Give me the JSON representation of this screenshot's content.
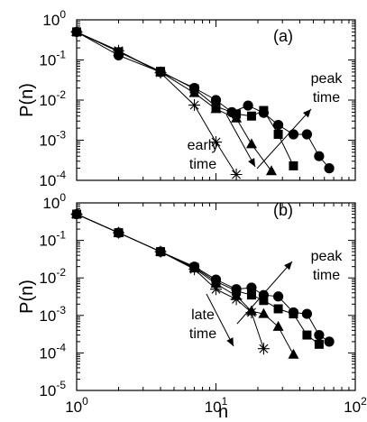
{
  "chart_data": [
    {
      "panel": "(a)",
      "type": "line",
      "xscale": "log",
      "yscale": "log",
      "xlim": [
        1,
        100
      ],
      "ylim": [
        0.0001,
        1
      ],
      "ylabel": "P(n)",
      "xlabel": "",
      "yticks": [
        {
          "value": 1,
          "mantissa": "10",
          "exp": "0"
        },
        {
          "value": 0.1,
          "mantissa": "10",
          "exp": "-1"
        },
        {
          "value": 0.01,
          "mantissa": "10",
          "exp": "-2"
        },
        {
          "value": 0.001,
          "mantissa": "10",
          "exp": "-3"
        },
        {
          "value": 0.0001,
          "mantissa": "10",
          "exp": "-4"
        }
      ],
      "series": [
        {
          "marker": "star",
          "x": [
            1,
            2,
            4,
            7,
            10,
            14
          ],
          "y": [
            0.5,
            0.17,
            0.048,
            0.0075,
            0.0009,
            0.00014
          ]
        },
        {
          "marker": "triangle",
          "x": [
            1,
            2,
            4,
            7,
            10,
            14,
            18,
            25
          ],
          "y": [
            0.5,
            0.16,
            0.05,
            0.015,
            0.006,
            0.0035,
            0.0008,
            0.00017
          ]
        },
        {
          "marker": "square",
          "x": [
            1,
            2,
            4,
            7,
            10,
            14,
            18,
            22,
            28,
            36
          ],
          "y": [
            0.5,
            0.16,
            0.052,
            0.019,
            0.007,
            0.0045,
            0.004,
            0.0055,
            0.0014,
            0.00023
          ]
        },
        {
          "marker": "circle",
          "x": [
            1,
            2,
            4,
            7,
            10,
            13,
            17,
            22,
            28,
            36,
            45,
            55,
            65
          ],
          "y": [
            0.5,
            0.13,
            0.05,
            0.02,
            0.01,
            0.005,
            0.0073,
            0.0048,
            0.0024,
            0.0014,
            0.0014,
            0.0004,
            0.0002
          ]
        }
      ],
      "annotations": [
        {
          "lines": [
            "peak",
            "time"
          ],
          "x": 40,
          "y": 0.011,
          "pointer": "up-right"
        },
        {
          "lines": [
            "early",
            "time"
          ],
          "x": 9.5,
          "y": 0.0008,
          "pointer": "down-left"
        }
      ]
    },
    {
      "panel": "(b)",
      "type": "line",
      "xscale": "log",
      "yscale": "log",
      "xlim": [
        1,
        100
      ],
      "ylim": [
        1e-05,
        1
      ],
      "ylabel": "P(n)",
      "xlabel": "n",
      "xticks": [
        {
          "value": 1,
          "mantissa": "10",
          "exp": "0"
        },
        {
          "value": 10,
          "mantissa": "10",
          "exp": "1"
        },
        {
          "value": 100,
          "mantissa": "10",
          "exp": "2"
        }
      ],
      "yticks": [
        {
          "value": 1,
          "mantissa": "10",
          "exp": "0"
        },
        {
          "value": 0.1,
          "mantissa": "10",
          "exp": "-1"
        },
        {
          "value": 0.01,
          "mantissa": "10",
          "exp": "-2"
        },
        {
          "value": 0.001,
          "mantissa": "10",
          "exp": "-3"
        },
        {
          "value": 0.0001,
          "mantissa": "10",
          "exp": "-4"
        },
        {
          "value": 1e-05,
          "mantissa": "10",
          "exp": "-5"
        }
      ],
      "series": [
        {
          "marker": "circle",
          "x": [
            1,
            2,
            4,
            7,
            10,
            14,
            18,
            22,
            28,
            36,
            45,
            55,
            65
          ],
          "y": [
            0.5,
            0.16,
            0.05,
            0.02,
            0.009,
            0.005,
            0.0055,
            0.0035,
            0.0032,
            0.0012,
            0.0011,
            0.0003,
            0.0002
          ]
        },
        {
          "marker": "square",
          "x": [
            1,
            2,
            4,
            7,
            10,
            14,
            18,
            22,
            28,
            36,
            45,
            55
          ],
          "y": [
            0.5,
            0.16,
            0.05,
            0.019,
            0.008,
            0.0045,
            0.0035,
            0.0025,
            0.0015,
            0.0011,
            0.0003,
            0.00017
          ]
        },
        {
          "marker": "triangle",
          "x": [
            1,
            2,
            4,
            7,
            10,
            14,
            18,
            22,
            28,
            36
          ],
          "y": [
            0.5,
            0.16,
            0.05,
            0.018,
            0.007,
            0.0033,
            0.0013,
            0.0011,
            0.0005,
            9e-05
          ]
        },
        {
          "marker": "star",
          "x": [
            1,
            2,
            4,
            7,
            10,
            14,
            18,
            22
          ],
          "y": [
            0.5,
            0.16,
            0.05,
            0.017,
            0.005,
            0.0027,
            0.0012,
            0.00013
          ]
        }
      ],
      "annotations": [
        {
          "lines": [
            "peak",
            "time"
          ],
          "x": 40,
          "y": 0.008,
          "pointer": "up-right"
        },
        {
          "lines": [
            "late",
            "time"
          ],
          "x": 9.5,
          "y": 0.0007,
          "pointer": "down-left"
        }
      ]
    }
  ]
}
